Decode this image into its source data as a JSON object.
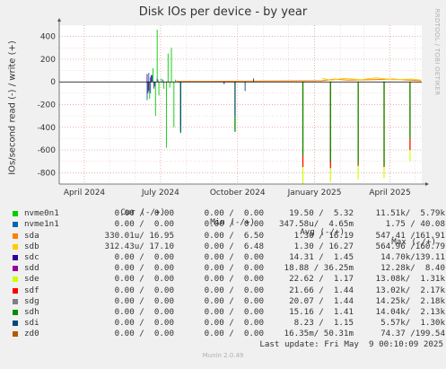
{
  "chart_data": {
    "type": "line",
    "title": "Disk IOs per device - by year",
    "ylabel": "IOs/second read (-) / write (+)",
    "ylim": [
      -900,
      500
    ],
    "yticks": [
      400,
      200,
      0,
      -200,
      -400,
      -600,
      -800
    ],
    "ytick_labels": [
      "400",
      "200",
      "0",
      "-200",
      "-400",
      "-600",
      "-800"
    ],
    "xticks": [
      {
        "date": "2024-04-01",
        "label": "April 2024"
      },
      {
        "date": "2024-07-01",
        "label": "July 2024"
      },
      {
        "date": "2024-10-01",
        "label": "October 2024"
      },
      {
        "date": "2025-01-01",
        "label": "January 2025"
      },
      {
        "date": "2025-04-01",
        "label": "April 2025"
      }
    ],
    "xlim": [
      "2024-03-02",
      "2025-05-09"
    ],
    "grid": true,
    "series": [
      {
        "name": "nvme0n1",
        "color": "#00cc00",
        "points": [
          [
            "2024-06-18",
            -150
          ],
          [
            "2024-06-22",
            120
          ],
          [
            "2024-06-25",
            -300
          ],
          [
            "2024-06-27",
            460
          ],
          [
            "2024-06-29",
            -120
          ],
          [
            "2024-07-02",
            30
          ],
          [
            "2024-07-05",
            -60
          ],
          [
            "2024-07-08",
            -580
          ],
          [
            "2024-07-10",
            250
          ],
          [
            "2024-07-12",
            -50
          ],
          [
            "2024-07-14",
            300
          ],
          [
            "2024-07-17",
            -400
          ],
          [
            "2024-07-19",
            20
          ]
        ]
      },
      {
        "name": "nvme1n1",
        "color": "#0066b3",
        "points": [
          [
            "2024-06-15",
            -160
          ],
          [
            "2024-06-17",
            80
          ],
          [
            "2024-06-19",
            -100
          ],
          [
            "2024-06-21",
            60
          ],
          [
            "2024-06-24",
            -40
          ],
          [
            "2024-06-27",
            30
          ],
          [
            "2024-07-04",
            20
          ]
        ]
      },
      {
        "name": "sda",
        "color": "#ff8000",
        "points": [
          [
            "2024-07-20",
            5
          ],
          [
            "2024-09-01",
            5
          ],
          [
            "2025-01-10",
            10
          ],
          [
            "2025-01-25",
            25
          ],
          [
            "2025-02-10",
            15
          ],
          [
            "2025-03-10",
            20
          ],
          [
            "2025-04-05",
            25
          ],
          [
            "2025-04-25",
            15
          ],
          [
            "2025-05-08",
            10
          ]
        ]
      },
      {
        "name": "sdb",
        "color": "#ffcc00",
        "points": [
          [
            "2025-01-10",
            30
          ],
          [
            "2025-01-20",
            15
          ],
          [
            "2025-02-05",
            30
          ],
          [
            "2025-02-25",
            20
          ],
          [
            "2025-03-15",
            35
          ],
          [
            "2025-04-05",
            20
          ],
          [
            "2025-04-28",
            25
          ],
          [
            "2025-05-08",
            15
          ]
        ]
      },
      {
        "name": "sdc",
        "color": "#330099",
        "points": [
          [
            "2024-06-15",
            70
          ],
          [
            "2024-06-17",
            -80
          ],
          [
            "2024-06-20",
            60
          ],
          [
            "2024-09-15",
            -20
          ]
        ]
      },
      {
        "name": "sdd",
        "color": "#990099",
        "points": [
          [
            "2024-06-16",
            -100
          ],
          [
            "2024-06-19",
            40
          ],
          [
            "2024-06-23",
            -60
          ]
        ]
      },
      {
        "name": "sde",
        "color": "#ccff00",
        "points": [
          [
            "2024-12-18",
            -900
          ],
          [
            "2025-01-20",
            -880
          ],
          [
            "2025-02-22",
            -860
          ],
          [
            "2025-03-25",
            -850
          ],
          [
            "2025-04-25",
            -700
          ]
        ]
      },
      {
        "name": "sdf",
        "color": "#ff0000",
        "points": [
          [
            "2024-12-18",
            -750
          ],
          [
            "2025-01-20",
            -760
          ],
          [
            "2025-02-22",
            -740
          ],
          [
            "2025-03-25",
            -750
          ],
          [
            "2025-04-25",
            -600
          ]
        ]
      },
      {
        "name": "sdg",
        "color": "#808080",
        "points": [
          [
            "2024-07-25",
            -380
          ],
          [
            "2024-09-28",
            -420
          ]
        ]
      },
      {
        "name": "sdh",
        "color": "#008f00",
        "points": [
          [
            "2024-07-25",
            -450
          ],
          [
            "2024-09-28",
            -440
          ],
          [
            "2024-12-18",
            -650
          ],
          [
            "2025-01-20",
            -700
          ],
          [
            "2025-02-22",
            -720
          ],
          [
            "2025-03-25",
            -740
          ],
          [
            "2025-04-25",
            -500
          ]
        ]
      },
      {
        "name": "sdi",
        "color": "#00487d",
        "points": [
          [
            "2024-07-25",
            -430
          ],
          [
            "2024-09-28",
            -300
          ],
          [
            "2024-10-10",
            -80
          ],
          [
            "2024-10-20",
            30
          ]
        ]
      },
      {
        "name": "zd0",
        "color": "#b35a00",
        "points": [
          [
            "2024-06-28",
            20
          ],
          [
            "2024-07-10",
            10
          ]
        ]
      }
    ]
  },
  "legend": {
    "headers": {
      "cur": "Cur (-/+)",
      "min": "Min (-/+)",
      "avg": "Avg (-/+)",
      "max": "Max (-/+)"
    },
    "rows": [
      {
        "name": "nvme0n1",
        "color": "#00cc00",
        "cur": "0.00 /  0.00",
        "min": "0.00 /  0.00",
        "avg": "19.50 /  5.32",
        "max": "11.51k/  5.79k"
      },
      {
        "name": "nvme1n1",
        "color": "#0066b3",
        "cur": "0.00 /  0.00",
        "min": "0.00 /  0.00",
        "avg": "347.58u/  4.65m",
        "max": "1.75 / 40.08"
      },
      {
        "name": "sda",
        "color": "#ff8000",
        "cur": "330.01u/ 16.95",
        "min": "0.00 /  6.50",
        "avg": "1.30 / 16.19",
        "max": "547.41 /161.91"
      },
      {
        "name": "sdb",
        "color": "#ffcc00",
        "cur": "312.43u/ 17.10",
        "min": "0.00 /  6.48",
        "avg": "1.30 / 16.27",
        "max": "564.96 /160.79"
      },
      {
        "name": "sdc",
        "color": "#330099",
        "cur": "0.00 /  0.00",
        "min": "0.00 /  0.00",
        "avg": "14.31 /  1.45",
        "max": "14.70k/139.11"
      },
      {
        "name": "sdd",
        "color": "#990099",
        "cur": "0.00 /  0.00",
        "min": "0.00 /  0.00",
        "avg": "18.88 / 36.25m",
        "max": "12.28k/  8.40"
      },
      {
        "name": "sde",
        "color": "#ccff00",
        "cur": "0.00 /  0.00",
        "min": "0.00 /  0.00",
        "avg": "22.62 /  1.17",
        "max": "13.08k/  1.31k"
      },
      {
        "name": "sdf",
        "color": "#ff0000",
        "cur": "0.00 /  0.00",
        "min": "0.00 /  0.00",
        "avg": "21.66 /  1.44",
        "max": "13.02k/  2.17k"
      },
      {
        "name": "sdg",
        "color": "#808080",
        "cur": "0.00 /  0.00",
        "min": "0.00 /  0.00",
        "avg": "20.07 /  1.44",
        "max": "14.25k/  2.18k"
      },
      {
        "name": "sdh",
        "color": "#008f00",
        "cur": "0.00 /  0.00",
        "min": "0.00 /  0.00",
        "avg": "15.16 /  1.41",
        "max": "14.04k/  2.13k"
      },
      {
        "name": "sdi",
        "color": "#00487d",
        "cur": "0.00 /  0.00",
        "min": "0.00 /  0.00",
        "avg": "8.23 /  1.15",
        "max": "5.57k/  1.30k"
      },
      {
        "name": "zd0",
        "color": "#b35a00",
        "cur": "0.00 /  0.00",
        "min": "0.00 /  0.00",
        "avg": "16.35m/ 50.31m",
        "max": "74.37 /199.54"
      }
    ],
    "last_update": "Last update: Fri May  9 00:10:09 2025"
  },
  "watermark": "RRDTOOL / TOBI OETIKER",
  "footer": "Munin 2.0.49"
}
